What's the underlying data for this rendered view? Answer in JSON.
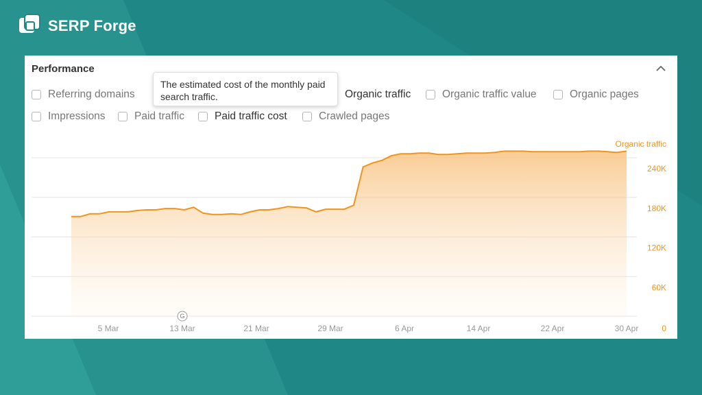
{
  "brand": {
    "name": "SERP Forge"
  },
  "panel": {
    "title": "Performance",
    "tooltip": "The estimated cost of the monthly paid search traffic."
  },
  "filters": [
    {
      "label": "Referring domains",
      "checked": false
    },
    {
      "label": "Organic traffic",
      "checked": true
    },
    {
      "label": "Organic traffic value",
      "checked": false
    },
    {
      "label": "Organic pages",
      "checked": false
    },
    {
      "label": "Impressions",
      "checked": false
    },
    {
      "label": "Paid traffic",
      "checked": false
    },
    {
      "label": "Paid traffic cost",
      "checked": false
    },
    {
      "label": "Crawled pages",
      "checked": false
    }
  ],
  "colors": {
    "accent": "#f0941d",
    "background": "#1f8785"
  },
  "chart_data": {
    "type": "area",
    "series": [
      {
        "name": "Organic traffic",
        "values": [
          151000,
          151000,
          155000,
          155000,
          158000,
          158000,
          158000,
          160000,
          161000,
          161000,
          163000,
          163000,
          161000,
          165000,
          156000,
          154000,
          154000,
          155000,
          154000,
          158000,
          161000,
          161000,
          163000,
          166000,
          165000,
          164000,
          158000,
          162000,
          162000,
          162000,
          168000,
          226000,
          232000,
          236000,
          243000,
          246000,
          246000,
          247000,
          247000,
          245000,
          245000,
          246000,
          247000,
          247000,
          247000,
          248000,
          250000,
          250000,
          250000,
          249000,
          249000,
          249000,
          249000,
          249000,
          249000,
          250000,
          250000,
          249000,
          248000,
          250000
        ]
      }
    ],
    "x_tick_labels": [
      "5 Mar",
      "13 Mar",
      "21 Mar",
      "29 Mar",
      "6 Apr",
      "14 Apr",
      "22 Apr",
      "30 Apr"
    ],
    "y_tick_labels": [
      "240K",
      "180K",
      "120K",
      "60K",
      "0"
    ],
    "y_ticks": [
      240000,
      180000,
      120000,
      60000,
      0
    ],
    "ylim": [
      0,
      240000
    ],
    "annotation": "G",
    "grid": true
  }
}
